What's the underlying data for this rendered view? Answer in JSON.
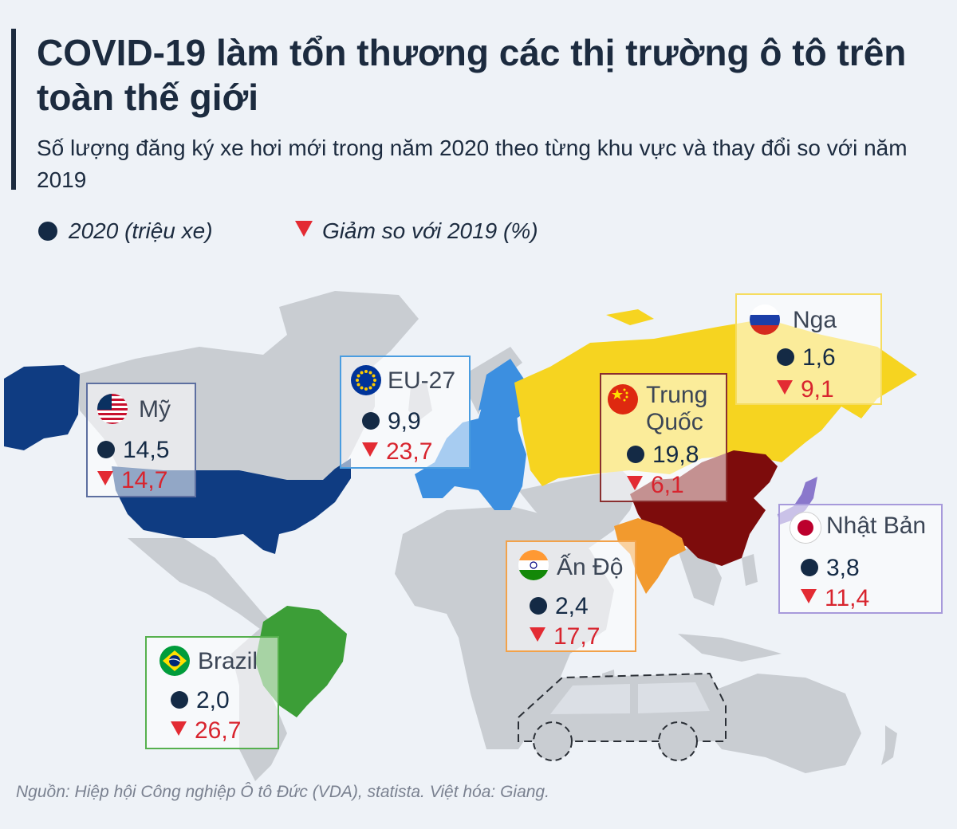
{
  "title": "COVID-19 làm tổn thương các thị trường ô tô trên toàn thế giới",
  "subtitle": "Số lượng đăng ký xe hơi mới trong năm 2020 theo từng khu vực và thay đổi so với năm 2019",
  "legend": {
    "registrations": "2020 (triệu xe)",
    "decline": "Giảm so với 2019 (%)"
  },
  "colors": {
    "base_land": "#c9cdd2",
    "us": "#0f3c82",
    "eu": "#3c8fe0",
    "russia": "#f6d420",
    "china": "#7d0c0c",
    "india": "#f29a2e",
    "japan": "#8a78cc",
    "brazil": "#3c9e37",
    "decline_red": "#d8242e",
    "dot_navy": "#142a45"
  },
  "regions": {
    "us": {
      "name": "Mỹ",
      "flag": "us-flag-icon",
      "registrations": "14,5",
      "decline": "14,7"
    },
    "eu": {
      "name": "EU-27",
      "flag": "eu-flag-icon",
      "registrations": "9,9",
      "decline": "23,7"
    },
    "china": {
      "name": "Trung Quốc",
      "name_line1": "Trung",
      "name_line2": "Quốc",
      "flag": "china-flag-icon",
      "registrations": "19,8",
      "decline": "6,1"
    },
    "russia": {
      "name": "Nga",
      "flag": "russia-flag-icon",
      "registrations": "1,6",
      "decline": "9,1"
    },
    "japan": {
      "name": "Nhật Bản",
      "flag": "japan-flag-icon",
      "registrations": "3,8",
      "decline": "11,4"
    },
    "india": {
      "name": "Ấn Độ",
      "flag": "india-flag-icon",
      "registrations": "2,4",
      "decline": "17,7"
    },
    "brazil": {
      "name": "Brazil",
      "flag": "brazil-flag-icon",
      "registrations": "2,0",
      "decline": "26,7"
    }
  },
  "source": "Nguồn: Hiệp hội Công nghiệp Ô tô Đức (VDA), statista. Việt hóa: Giang."
}
